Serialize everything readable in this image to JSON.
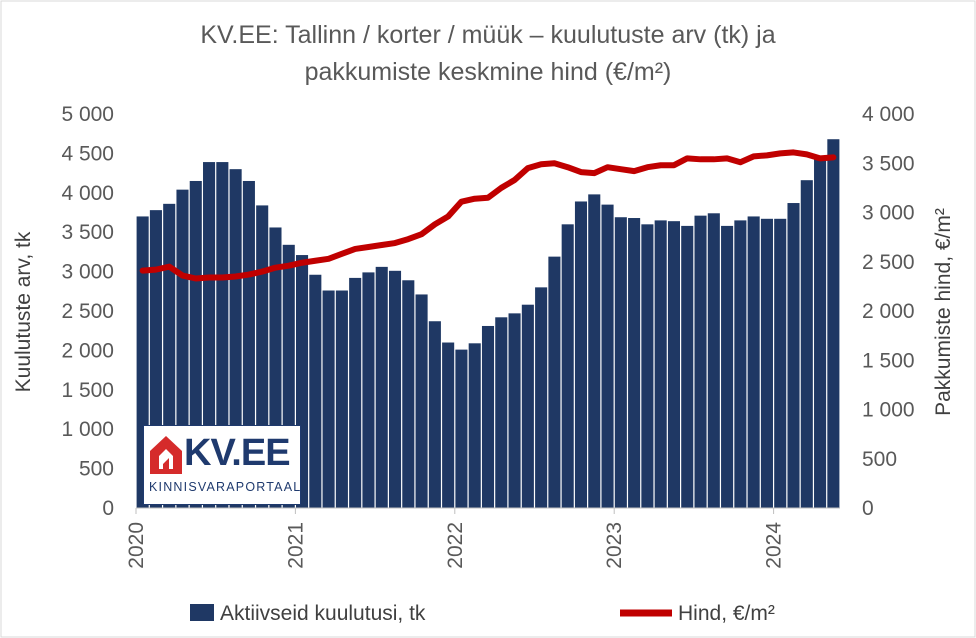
{
  "chart_data": {
    "type": "bar+line",
    "title_lines": [
      "KV.EE: Tallinn / korter / müük – kuulutuste arv (tk) ja",
      "pakkumiste keskmine hind (€/m²)"
    ],
    "ylabel_left": "Kuulutuste arv, tk",
    "ylabel_right": "Pakkumiste hind, €/m²",
    "ylim_left": [
      0,
      5000
    ],
    "ylim_right": [
      0,
      4000
    ],
    "yticks_left": [
      "0",
      "500",
      "1 000",
      "1 500",
      "2 000",
      "2 500",
      "3 000",
      "3 500",
      "4 000",
      "4 500",
      "5 000"
    ],
    "yticks_right": [
      "0",
      "500",
      "1 000",
      "1 500",
      "2 000",
      "2 500",
      "3 000",
      "3 500",
      "4 000"
    ],
    "xticks": [
      "2020",
      "2021",
      "2022",
      "2023",
      "2024"
    ],
    "grid": false,
    "legend_position": "bottom",
    "series": [
      {
        "name": "Aktiivseid kuulutusi, tk",
        "type": "bar",
        "color": "#1f3864",
        "values": [
          3700,
          3780,
          3860,
          4040,
          4150,
          4390,
          4390,
          4300,
          4150,
          3840,
          3560,
          3340,
          3210,
          2960,
          2760,
          2760,
          2920,
          2990,
          3060,
          3010,
          2890,
          2710,
          2370,
          2100,
          2010,
          2090,
          2310,
          2420,
          2470,
          2580,
          2800,
          3190,
          3600,
          3890,
          3980,
          3850,
          3690,
          3680,
          3600,
          3650,
          3640,
          3580,
          3710,
          3740,
          3580,
          3650,
          3700,
          3670,
          3670,
          3870,
          4160,
          4450,
          4680
        ]
      },
      {
        "name": "Hind, €/m²",
        "type": "line",
        "color": "#c00000",
        "values": [
          2410,
          2420,
          2450,
          2360,
          2330,
          2340,
          2340,
          2350,
          2370,
          2400,
          2440,
          2460,
          2490,
          2510,
          2530,
          2580,
          2630,
          2650,
          2670,
          2690,
          2730,
          2780,
          2880,
          2960,
          3110,
          3140,
          3150,
          3250,
          3330,
          3450,
          3490,
          3500,
          3460,
          3410,
          3400,
          3460,
          3440,
          3420,
          3460,
          3480,
          3480,
          3550,
          3540,
          3540,
          3550,
          3510,
          3570,
          3580,
          3600,
          3610,
          3590,
          3550,
          3560
        ]
      }
    ]
  },
  "logo": {
    "text": "KV.EE",
    "subtext": "KINNISVARAPORTAAL",
    "colors": {
      "navy": "#1f3a6e",
      "red": "#d52b2b"
    }
  }
}
